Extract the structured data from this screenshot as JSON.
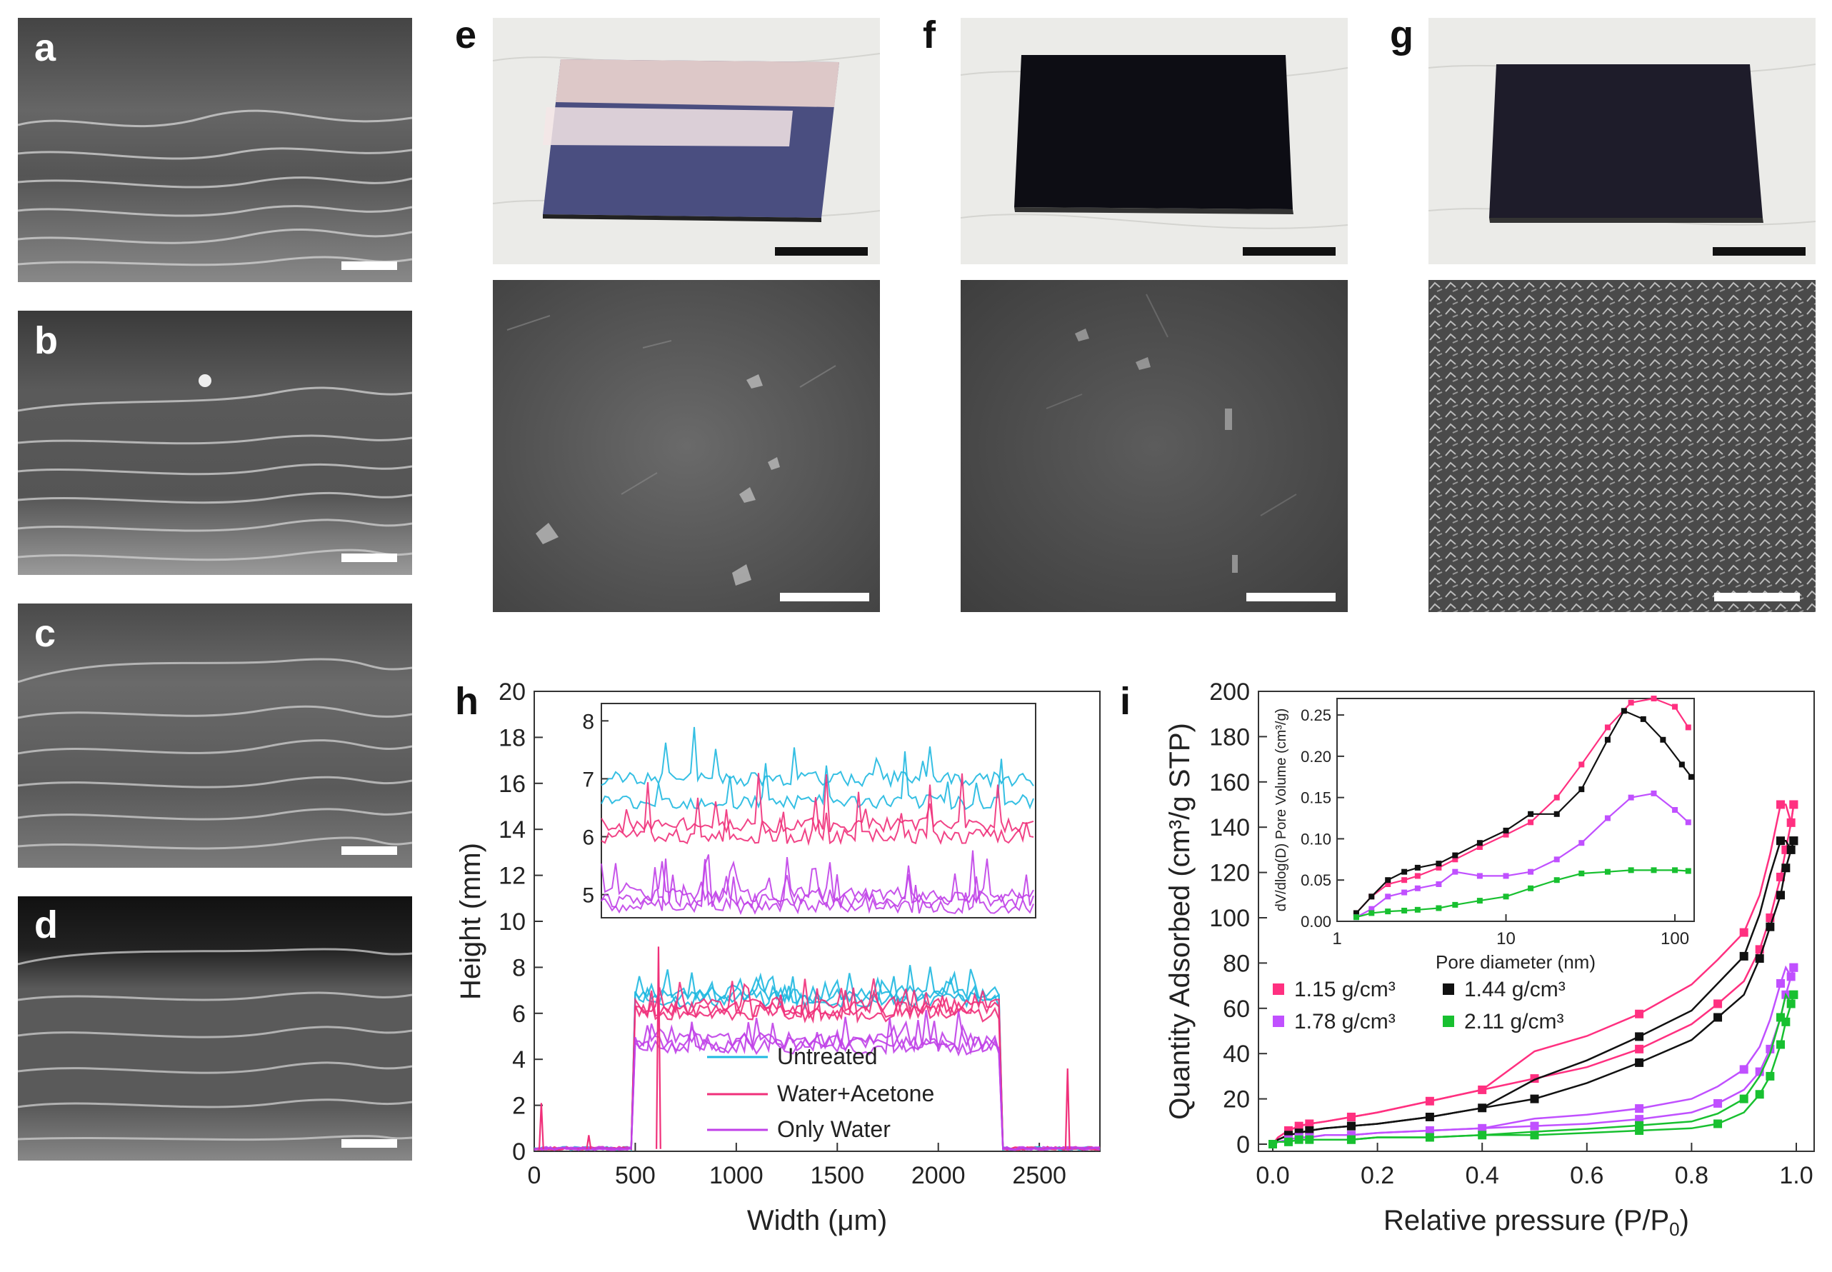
{
  "panel_letters": {
    "a": "a",
    "b": "b",
    "c": "c",
    "d": "d",
    "e": "e",
    "f": "f",
    "g": "g",
    "h": "h",
    "i": "i"
  },
  "colors": {
    "untreated": "#1fb8e0",
    "water_acetone": "#f0307a",
    "only_water": "#c040e8",
    "s115": "#ff3080",
    "s144": "#111111",
    "s178": "#c050ff",
    "s211": "#18c030"
  },
  "chart_data": [
    {
      "id": "h",
      "type": "line",
      "xlabel": "Width (μm)",
      "ylabel": "Height (mm)",
      "xlim": [
        0,
        2800
      ],
      "ylim": [
        0,
        20
      ],
      "xticks": [
        0,
        500,
        1000,
        1500,
        2000,
        2500
      ],
      "yticks": [
        0,
        2,
        4,
        6,
        8,
        10,
        12,
        14,
        16,
        18,
        20
      ],
      "legend_position": "inside-bottom-center",
      "series": [
        {
          "name": "Untreated",
          "color": "#1fb8e0",
          "level": 6.9
        },
        {
          "name": "Water+Acetone",
          "color": "#f0307a",
          "level": 6.3
        },
        {
          "name": "Only Water",
          "color": "#c040e8",
          "level": 4.8
        }
      ],
      "inset": {
        "ylim": [
          4.6,
          8.3
        ],
        "yticks": [
          5,
          6,
          7,
          8
        ]
      }
    },
    {
      "id": "i",
      "type": "scatter",
      "xlabel": "Relative pressure (P/P",
      "xlabel_sub": "0",
      "xlabel_close": ")",
      "ylabel": "Quantity Adsorbed (cm³/g STP)",
      "xlim": [
        0,
        1.0
      ],
      "ylim": [
        0,
        200
      ],
      "xticks": [
        "0.0",
        "0.2",
        "0.4",
        "0.6",
        "0.8",
        "1.0"
      ],
      "yticks": [
        0,
        20,
        40,
        60,
        80,
        100,
        120,
        140,
        160,
        180,
        200
      ],
      "legend_position": "middle-left",
      "series": [
        {
          "name": "1.15 g/cm³",
          "color": "#ff3080",
          "x": [
            0.0,
            0.01,
            0.03,
            0.05,
            0.07,
            0.1,
            0.15,
            0.2,
            0.3,
            0.4,
            0.5,
            0.6,
            0.7,
            0.8,
            0.85,
            0.9,
            0.93,
            0.95,
            0.97,
            0.98,
            0.99,
            0.995
          ],
          "ads": [
            0,
            3,
            6,
            8,
            9,
            10,
            12,
            14,
            19,
            24,
            29,
            34,
            42,
            53,
            62,
            72,
            86,
            100,
            118,
            130,
            142,
            150
          ],
          "des": [
            150,
            146,
            140,
            128,
            112,
            96,
            86,
            78,
            70,
            62,
            55,
            48,
            42,
            34,
            28,
            24,
            20,
            17,
            14,
            10,
            6,
            2
          ]
        },
        {
          "name": "1.44 g/cm³",
          "color": "#111111",
          "x": [
            0.0,
            0.01,
            0.03,
            0.05,
            0.07,
            0.1,
            0.15,
            0.2,
            0.3,
            0.4,
            0.5,
            0.6,
            0.7,
            0.8,
            0.85,
            0.9,
            0.93,
            0.95,
            0.97,
            0.98,
            0.99,
            0.995
          ],
          "ads": [
            0,
            2,
            4,
            5,
            6,
            7,
            8,
            9,
            12,
            16,
            20,
            27,
            36,
            46,
            56,
            66,
            82,
            96,
            110,
            122,
            130,
            134
          ],
          "des": [
            134,
            128,
            118,
            106,
            92,
            78,
            68,
            60,
            52,
            46,
            40,
            34,
            28,
            22,
            18,
            15,
            12,
            10,
            8,
            6,
            4,
            2
          ]
        },
        {
          "name": "1.78 g/cm³",
          "color": "#c050ff",
          "x": [
            0.0,
            0.01,
            0.03,
            0.05,
            0.07,
            0.1,
            0.15,
            0.2,
            0.3,
            0.4,
            0.5,
            0.6,
            0.7,
            0.8,
            0.85,
            0.9,
            0.93,
            0.95,
            0.97,
            0.98,
            0.99,
            0.995
          ],
          "ads": [
            0,
            1,
            2,
            3,
            3,
            4,
            4,
            5,
            6,
            7,
            8,
            9,
            11,
            14,
            18,
            24,
            32,
            42,
            56,
            66,
            74,
            78
          ],
          "des": [
            78,
            74,
            68,
            60,
            52,
            44,
            36,
            30,
            24,
            19,
            16,
            13,
            11,
            9,
            8,
            7,
            6,
            5,
            4,
            3,
            2,
            1
          ]
        },
        {
          "name": "2.11 g/cm³",
          "color": "#18c030",
          "x": [
            0.0,
            0.01,
            0.03,
            0.05,
            0.07,
            0.1,
            0.15,
            0.2,
            0.3,
            0.4,
            0.5,
            0.6,
            0.7,
            0.8,
            0.85,
            0.9,
            0.93,
            0.95,
            0.97,
            0.98,
            0.99,
            0.995
          ],
          "ads": [
            0,
            1,
            1,
            2,
            2,
            2,
            2,
            3,
            3,
            4,
            4,
            5,
            6,
            7,
            9,
            14,
            22,
            30,
            44,
            54,
            62,
            66
          ],
          "des": [
            66,
            62,
            56,
            48,
            40,
            32,
            24,
            18,
            12,
            9,
            7,
            6,
            5,
            4,
            4,
            3,
            3,
            2,
            2,
            2,
            1,
            1
          ]
        }
      ],
      "inset": {
        "xlabel": "Pore diameter (nm)",
        "ylabel": "dV/dlog(D) Pore Volume (cm³/g)",
        "xscale": "log",
        "xlim": [
          1,
          130
        ],
        "ylim": [
          0,
          0.27
        ],
        "xticks": [
          "1",
          "10",
          "100"
        ],
        "yticks": [
          "0.00",
          "0.05",
          "0.10",
          "0.15",
          "0.20",
          "0.25"
        ],
        "series": [
          {
            "color": "#ff3080",
            "x": [
              1.3,
              1.6,
              2,
              2.5,
              3,
              4,
              5,
              7,
              10,
              14,
              20,
              28,
              40,
              55,
              75,
              100,
              120
            ],
            "y": [
              0.01,
              0.03,
              0.045,
              0.05,
              0.055,
              0.065,
              0.075,
              0.09,
              0.105,
              0.12,
              0.15,
              0.19,
              0.235,
              0.265,
              0.27,
              0.26,
              0.235
            ]
          },
          {
            "color": "#111111",
            "x": [
              1.3,
              1.6,
              2,
              2.5,
              3,
              4,
              5,
              7,
              10,
              14,
              20,
              28,
              40,
              50,
              65,
              85,
              110,
              125
            ],
            "y": [
              0.01,
              0.03,
              0.05,
              0.06,
              0.065,
              0.07,
              0.08,
              0.095,
              0.11,
              0.13,
              0.13,
              0.16,
              0.22,
              0.255,
              0.245,
              0.22,
              0.19,
              0.175
            ]
          },
          {
            "color": "#c050ff",
            "x": [
              1.3,
              1.6,
              2,
              2.5,
              3,
              4,
              5,
              7,
              10,
              14,
              20,
              28,
              40,
              55,
              75,
              100,
              120
            ],
            "y": [
              0.005,
              0.015,
              0.03,
              0.035,
              0.04,
              0.045,
              0.06,
              0.055,
              0.055,
              0.06,
              0.075,
              0.095,
              0.125,
              0.15,
              0.155,
              0.135,
              0.12
            ]
          },
          {
            "color": "#18c030",
            "x": [
              1.3,
              1.6,
              2,
              2.5,
              3,
              4,
              5,
              7,
              10,
              14,
              20,
              28,
              40,
              55,
              75,
              100,
              120
            ],
            "y": [
              0.005,
              0.01,
              0.012,
              0.013,
              0.014,
              0.016,
              0.02,
              0.025,
              0.03,
              0.04,
              0.05,
              0.058,
              0.06,
              0.062,
              0.062,
              0.062,
              0.061
            ]
          }
        ]
      }
    }
  ]
}
